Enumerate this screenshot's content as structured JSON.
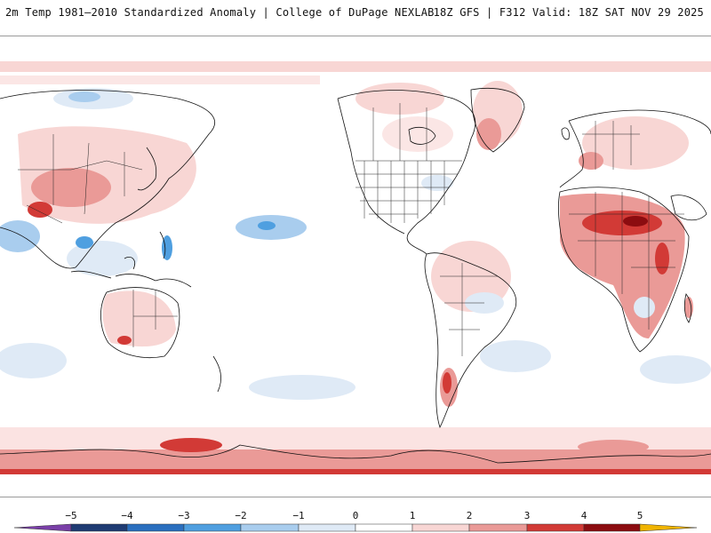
{
  "header": {
    "title_left": "2m Temp 1981–2010 Standardized Anomaly | College of DuPage NEXLAB",
    "title_right": "18Z GFS | F312 Valid: 18Z SAT NOV 29 2025"
  },
  "map": {
    "projection": "equirectangular, Pacific-centered",
    "variable": "2m temperature standardized anomaly",
    "overlays": [
      "country-borders",
      "us-state-borders",
      "coastlines"
    ]
  },
  "colorbar": {
    "tick_labels": [
      "−5",
      "−4",
      "−3",
      "−2",
      "−1",
      "0",
      "1",
      "2",
      "3",
      "4",
      "5"
    ],
    "bins": [
      {
        "range": "<-5",
        "color": "#7a3fa8"
      },
      {
        "range": "-5..-4",
        "color": "#1f3b73"
      },
      {
        "range": "-4..-3",
        "color": "#2a6fbf"
      },
      {
        "range": "-3..-2",
        "color": "#4f9fe0"
      },
      {
        "range": "-2..-1",
        "color": "#a9cdee"
      },
      {
        "range": "-1..0",
        "color": "#dfeaf6"
      },
      {
        "range": "0..1",
        "color": "#ffffff"
      },
      {
        "range": "1..2",
        "color": "#f8d6d4"
      },
      {
        "range": "2..3",
        "color": "#ea9a97"
      },
      {
        "range": "3..4",
        "color": "#d23a36"
      },
      {
        "range": "4..5",
        "color": "#8c0c10"
      },
      {
        "range": ">5",
        "color": "#f0b400"
      }
    ]
  }
}
